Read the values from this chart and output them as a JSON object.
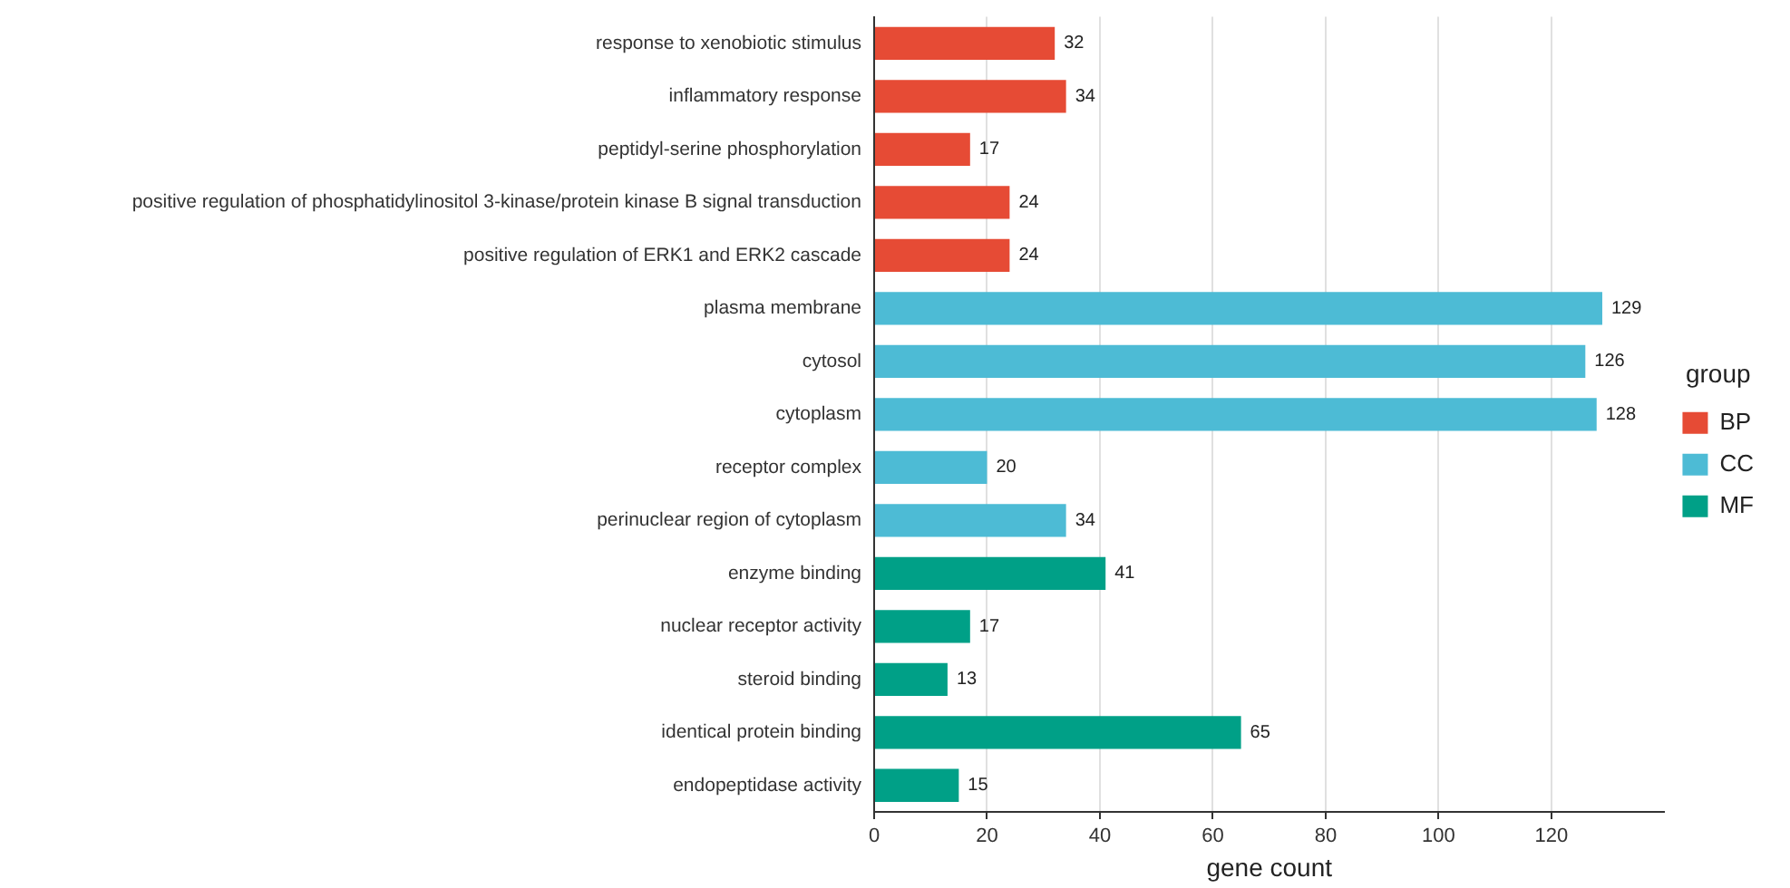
{
  "chart_data": {
    "type": "bar",
    "orientation": "horizontal",
    "xlabel": "gene count",
    "legend_title": "group",
    "legend": "right",
    "grid": "x",
    "data_labels": true,
    "categories": [
      "response to xenobiotic stimulus",
      "inflammatory response",
      "peptidyl-serine phosphorylation",
      "positive regulation of phosphatidylinositol 3-kinase/protein kinase B signal transduction",
      "positive regulation of ERK1 and ERK2 cascade",
      "plasma membrane",
      "cytosol",
      "cytoplasm",
      "receptor complex",
      "perinuclear region of cytoplasm",
      "enzyme binding",
      "nuclear receptor activity",
      "steroid binding",
      "identical protein binding",
      "endopeptidase activity"
    ],
    "xlim": [
      0,
      140
    ],
    "xticks": [
      0,
      20,
      40,
      60,
      80,
      100,
      120
    ],
    "series": [
      {
        "name": "BP",
        "color": "#e64b35",
        "values": [
          32,
          34,
          17,
          24,
          24,
          null,
          null,
          null,
          null,
          null,
          null,
          null,
          null,
          null,
          null
        ]
      },
      {
        "name": "CC",
        "color": "#4dbbd5",
        "values": [
          null,
          null,
          null,
          null,
          null,
          129,
          126,
          128,
          20,
          34,
          null,
          null,
          null,
          null,
          null
        ]
      },
      {
        "name": "MF",
        "color": "#00a087",
        "values": [
          null,
          null,
          null,
          null,
          null,
          null,
          null,
          null,
          null,
          null,
          41,
          17,
          13,
          65,
          15
        ]
      }
    ]
  }
}
